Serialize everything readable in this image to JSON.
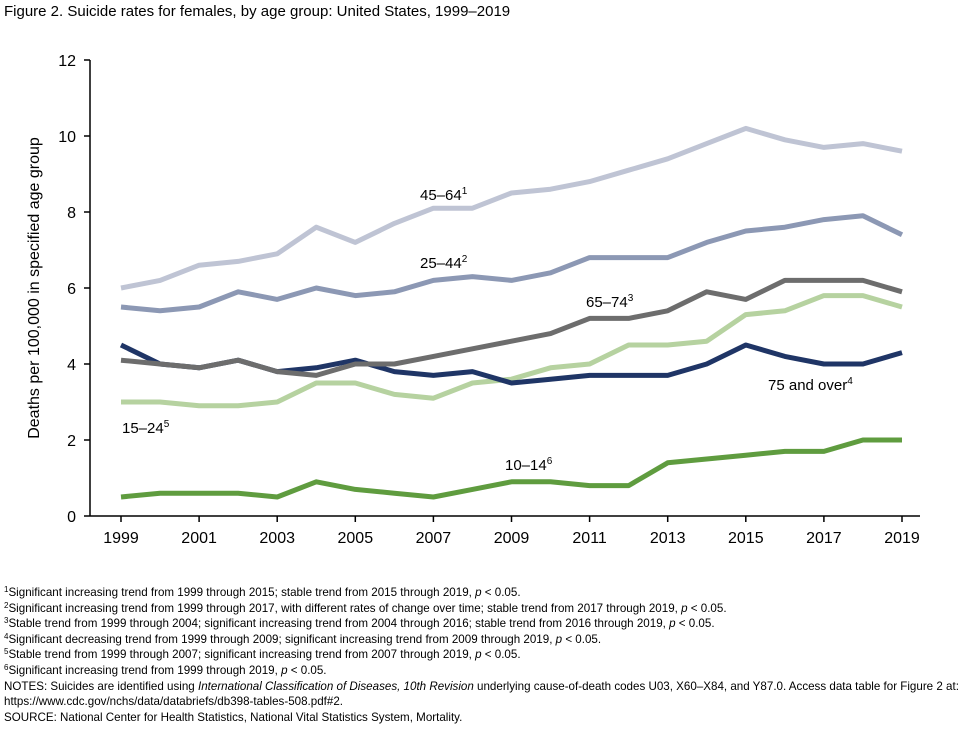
{
  "title": "Figure 2. Suicide rates for females, by age group: United States, 1999–2019",
  "chart_data": {
    "type": "line",
    "title": "Figure 2. Suicide rates for females, by age group: United States, 1999–2019",
    "xlabel": "",
    "ylabel": "Deaths per 100,000 in specified age group",
    "ylim": [
      0,
      12
    ],
    "yticks": [
      "0",
      "2",
      "4",
      "6",
      "8",
      "10",
      "12"
    ],
    "xticks": [
      "1999",
      "2001",
      "2003",
      "2005",
      "2007",
      "2009",
      "2011",
      "2013",
      "2015",
      "2017",
      "2019"
    ],
    "x": [
      1999,
      2000,
      2001,
      2002,
      2003,
      2004,
      2005,
      2006,
      2007,
      2008,
      2009,
      2010,
      2011,
      2012,
      2013,
      2014,
      2015,
      2016,
      2017,
      2018,
      2019
    ],
    "grid": false,
    "series": [
      {
        "name": "45–64",
        "sup": "1",
        "color": "#bfc4d4",
        "values": [
          6.0,
          6.2,
          6.6,
          6.7,
          6.9,
          7.6,
          7.2,
          7.7,
          8.1,
          8.1,
          8.5,
          8.6,
          8.8,
          9.1,
          9.4,
          9.8,
          10.2,
          9.9,
          9.7,
          9.8,
          9.6
        ]
      },
      {
        "name": "25–44",
        "sup": "2",
        "color": "#8c98b4",
        "values": [
          5.5,
          5.4,
          5.5,
          5.9,
          5.7,
          6.0,
          5.8,
          5.9,
          6.2,
          6.3,
          6.2,
          6.4,
          6.8,
          6.8,
          6.8,
          7.2,
          7.5,
          7.6,
          7.8,
          7.9,
          7.4
        ]
      },
      {
        "name": "15–24",
        "sup": "5",
        "color": "#b6d2a0",
        "values": [
          3.0,
          3.0,
          2.9,
          2.9,
          3.0,
          3.5,
          3.5,
          3.2,
          3.1,
          3.5,
          3.6,
          3.9,
          4.0,
          4.5,
          4.5,
          4.6,
          5.3,
          5.4,
          5.8,
          5.8,
          5.5
        ]
      },
      {
        "name": "75 and over",
        "sup": "4",
        "color": "#1f3566",
        "values": [
          4.5,
          4.0,
          3.9,
          4.1,
          3.8,
          3.9,
          4.1,
          3.8,
          3.7,
          3.8,
          3.5,
          3.6,
          3.7,
          3.7,
          3.7,
          4.0,
          4.5,
          4.2,
          4.0,
          4.0,
          4.3
        ]
      },
      {
        "name": "65–74",
        "sup": "3",
        "color": "#6d6d6d",
        "values": [
          4.1,
          4.0,
          3.9,
          4.1,
          3.8,
          3.7,
          4.0,
          4.0,
          4.2,
          4.4,
          4.6,
          4.8,
          5.2,
          5.2,
          5.4,
          5.9,
          5.7,
          6.2,
          6.2,
          6.2,
          5.9
        ]
      },
      {
        "name": "10–14",
        "sup": "6",
        "color": "#5f9c3f",
        "values": [
          0.5,
          0.6,
          0.6,
          0.6,
          0.5,
          0.9,
          0.7,
          0.6,
          0.5,
          0.7,
          0.9,
          0.9,
          0.8,
          0.8,
          1.4,
          1.5,
          1.6,
          1.7,
          1.7,
          2.0,
          2.0
        ]
      }
    ]
  },
  "footnotes": [
    {
      "sup": "1",
      "text": "Significant increasing trend from 1999 through 2015; stable trend from 2015 through 2019, ",
      "p": "p",
      "tail": " < 0.05."
    },
    {
      "sup": "2",
      "text": "Significant increasing trend from 1999 through 2017, with different rates of change over time; stable trend from 2017 through 2019, ",
      "p": "p",
      "tail": " < 0.05."
    },
    {
      "sup": "3",
      "text": "Stable trend from 1999 through 2004; significant increasing trend from 2004 through 2016; stable trend from 2016 through 2019, ",
      "p": "p",
      "tail": " < 0.05."
    },
    {
      "sup": "4",
      "text": "Significant decreasing trend from 1999 through 2009; significant increasing trend from 2009 through 2019, ",
      "p": "p",
      "tail": " < 0.05."
    },
    {
      "sup": "5",
      "text": "Stable trend from 1999 through 2007; significant increasing trend from 2007 through 2019, ",
      "p": "p",
      "tail": " < 0.05."
    },
    {
      "sup": "6",
      "text": "Significant increasing trend from 1999 through 2019, ",
      "p": "p",
      "tail": " < 0.05."
    }
  ],
  "notes": {
    "a": "NOTES: Suicides are identified using ",
    "italic": "International Classification of Diseases, 10th Revision",
    "b": " underlying cause-of-death codes U03, X60–X84, and Y87.0. Access data table for Figure 2 at: https://www.cdc.gov/nchs/data/databriefs/db398-tables-508.pdf#2."
  },
  "source": "SOURCE: National Center for Health Statistics, National Vital Statistics System, Mortality."
}
